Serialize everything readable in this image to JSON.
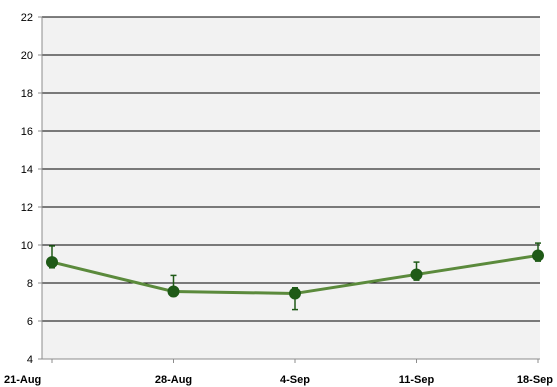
{
  "chart_data": {
    "type": "line",
    "title": "",
    "xlabel": "",
    "ylabel": "",
    "categories": [
      "21-Aug",
      "28-Aug",
      "4-Sep",
      "11-Sep",
      "18-Sep"
    ],
    "series": [
      {
        "values": [
          9.1,
          7.55,
          7.45,
          8.45,
          9.45
        ],
        "error_upper": [
          0.85,
          0.85,
          0.3,
          0.65,
          0.65
        ],
        "error_lower": [
          0.3,
          0.25,
          0.85,
          0.3,
          0.3
        ]
      }
    ],
    "ylim": [
      4,
      22
    ],
    "yticks": [
      4,
      6,
      8,
      10,
      12,
      14,
      16,
      18,
      20,
      22
    ],
    "grid": true,
    "legend": "none",
    "colors": {
      "line": "#5b8a3c",
      "marker": "#1f5a17",
      "error_bar": "#1f5a17",
      "plot_background": "#f2f2f2",
      "grid": "#000000",
      "axis": "#8c8c8c"
    }
  }
}
